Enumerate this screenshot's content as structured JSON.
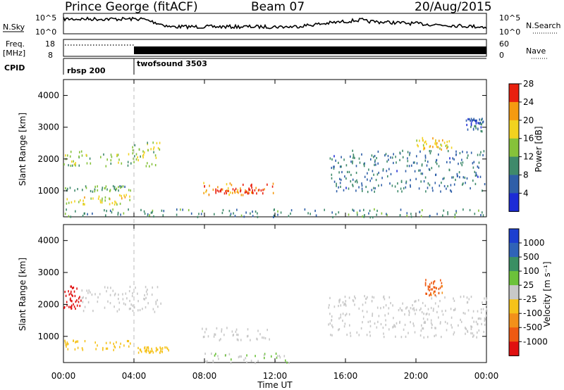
{
  "header": {
    "radar": "Prince George (fitACF)",
    "beam": "Beam 07",
    "date": "20/Aug/2015"
  },
  "summary": {
    "nsky_label": "N.Sky",
    "nsearch_label": "N.Search",
    "nsky_ticks": [
      "10^5",
      "10^0"
    ],
    "nsearch_ticks": [
      "10^5",
      "10^0"
    ],
    "freq_label_top": "Freq.",
    "freq_label_bottom": "[MHz]",
    "freq_ticks": [
      "18",
      "8"
    ],
    "nave_label": "Nave",
    "nave_ticks": [
      "60",
      "0"
    ],
    "cpid_label": "CPID",
    "cpid_segments": [
      {
        "label": "rbsp 200",
        "start_hour": 0.0
      },
      {
        "label": "twofsound 3503",
        "start_hour": 4.0
      }
    ]
  },
  "panels": {
    "power": {
      "ylabel": "Slant Range [km]",
      "colorbar_title": "Power [dB]",
      "colorbar_ticks": [
        "4",
        "8",
        "12",
        "16",
        "20",
        "24",
        "28"
      ],
      "colorbar_colors": [
        "#1c2bd6",
        "#2f5fa8",
        "#3f8a6b",
        "#86c23a",
        "#f2d21f",
        "#f59a10",
        "#e8200e"
      ]
    },
    "velocity": {
      "ylabel": "Slant Range [km]",
      "colorbar_title": "Velocity [m s⁻¹]",
      "colorbar_ticks": [
        "1000",
        "500",
        "100",
        "25",
        "-25",
        "-100",
        "-500",
        "-1000"
      ],
      "colorbar_colors": [
        "#1c3fd0",
        "#2f63b8",
        "#3a8f63",
        "#6cc23a",
        "#c8c8c8",
        "#f5c21a",
        "#f2901a",
        "#ee5a12",
        "#e01010"
      ]
    }
  },
  "x_axis": {
    "label": "Time UT",
    "ticks": [
      "00:00",
      "04:00",
      "08:00",
      "12:00",
      "16:00",
      "20:00",
      "00:00"
    ]
  },
  "y_axis": {
    "ticks": [
      "1000",
      "2000",
      "3000",
      "4000"
    ]
  },
  "chart_data": [
    {
      "type": "heatmap",
      "title": "Power",
      "xlabel": "",
      "ylabel": "Slant Range [km]",
      "x_unit": "hours UT",
      "xlim": [
        0,
        24
      ],
      "ylim": [
        180,
        4500
      ],
      "value_unit": "dB",
      "color_range": [
        0,
        30
      ],
      "features": [
        {
          "t_start": 0.0,
          "t_end": 3.8,
          "range_km": [
            1800,
            2300
          ],
          "value": 14
        },
        {
          "t_start": 0.0,
          "t_end": 3.8,
          "range_km": [
            1000,
            1200
          ],
          "value": 12
        },
        {
          "t_start": 0.0,
          "t_end": 3.8,
          "range_km": [
            600,
            900
          ],
          "value": 18
        },
        {
          "t_start": 3.8,
          "t_end": 5.5,
          "range_km": [
            1800,
            2600
          ],
          "value": 16
        },
        {
          "t_start": 7.8,
          "t_end": 12.0,
          "range_km": [
            900,
            1300
          ],
          "value": 24
        },
        {
          "t_start": 8.5,
          "t_end": 11.5,
          "range_km": [
            950,
            1100
          ],
          "value": 28
        },
        {
          "t_start": 0.0,
          "t_end": 24.0,
          "range_km": [
            200,
            450
          ],
          "value": 10
        },
        {
          "t_start": 15.0,
          "t_end": 24.0,
          "range_km": [
            1000,
            2300
          ],
          "value": 8
        },
        {
          "t_start": 20.0,
          "t_end": 22.0,
          "range_km": [
            2300,
            2700
          ],
          "value": 20
        },
        {
          "t_start": 22.8,
          "t_end": 23.8,
          "range_km": [
            2900,
            3300
          ],
          "value": 6
        }
      ]
    },
    {
      "type": "heatmap",
      "title": "Velocity",
      "xlabel": "Time UT",
      "ylabel": "Slant Range [km]",
      "x_unit": "hours UT",
      "xlim": [
        0,
        24
      ],
      "ylim": [
        180,
        4500
      ],
      "value_unit": "m s^-1",
      "color_range": [
        -1000,
        1000
      ],
      "features": [
        {
          "t_start": 0.0,
          "t_end": 1.0,
          "range_km": [
            1900,
            2600
          ],
          "value": -900
        },
        {
          "t_start": 1.0,
          "t_end": 5.5,
          "range_km": [
            1800,
            2600
          ],
          "value": 0
        },
        {
          "t_start": 0.0,
          "t_end": 3.8,
          "range_km": [
            600,
            900
          ],
          "value": -200
        },
        {
          "t_start": 4.2,
          "t_end": 6.0,
          "range_km": [
            500,
            700
          ],
          "value": -250
        },
        {
          "t_start": 7.8,
          "t_end": 12.0,
          "range_km": [
            900,
            1300
          ],
          "value": 0
        },
        {
          "t_start": 8.0,
          "t_end": 13.0,
          "range_km": [
            200,
            500
          ],
          "value": 100
        },
        {
          "t_start": 15.0,
          "t_end": 24.0,
          "range_km": [
            1000,
            2300
          ],
          "value": 0
        },
        {
          "t_start": 20.5,
          "t_end": 21.5,
          "range_km": [
            2300,
            2800
          ],
          "value": -600
        }
      ]
    }
  ]
}
